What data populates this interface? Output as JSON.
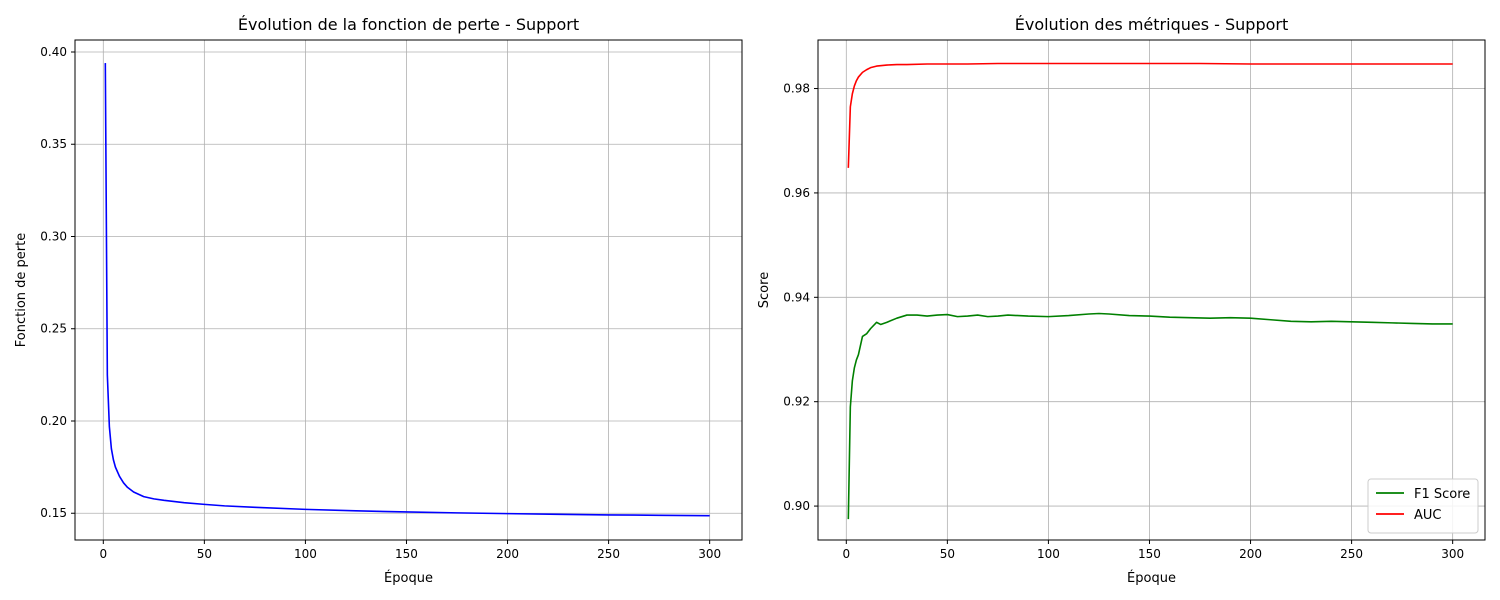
{
  "chart_data": [
    {
      "type": "line",
      "title": "Évolution de la fonction de perte - Support",
      "xlabel": "Époque",
      "ylabel": "Fonction de perte",
      "xlim": [
        -14,
        316
      ],
      "ylim": [
        0.1355,
        0.4065
      ],
      "xticks": [
        0,
        50,
        100,
        150,
        200,
        250,
        300
      ],
      "yticks": [
        0.15,
        0.2,
        0.25,
        0.3,
        0.35,
        0.4
      ],
      "ytick_labels": [
        "0.15",
        "0.20",
        "0.25",
        "0.30",
        "0.35",
        "0.40"
      ],
      "grid": true,
      "series": [
        {
          "color": "#0000ff",
          "x": [
            1,
            2,
            3,
            4,
            5,
            6,
            8,
            10,
            12,
            15,
            20,
            25,
            30,
            40,
            50,
            60,
            75,
            100,
            125,
            150,
            175,
            200,
            225,
            250,
            275,
            300
          ],
          "values": [
            0.394,
            0.225,
            0.197,
            0.185,
            0.179,
            0.175,
            0.17,
            0.1665,
            0.164,
            0.1615,
            0.159,
            0.1578,
            0.157,
            0.1557,
            0.1548,
            0.154,
            0.1532,
            0.1521,
            0.1513,
            0.1507,
            0.1502,
            0.1498,
            0.1494,
            0.1491,
            0.1489,
            0.1487
          ]
        }
      ]
    },
    {
      "type": "line",
      "title": "Évolution des métriques - Support",
      "xlabel": "Époque",
      "ylabel": "Score",
      "xlim": [
        -14,
        316
      ],
      "ylim": [
        0.8935,
        0.9893
      ],
      "xticks": [
        0,
        50,
        100,
        150,
        200,
        250,
        300
      ],
      "yticks": [
        0.9,
        0.92,
        0.94,
        0.96,
        0.98
      ],
      "ytick_labels": [
        "0.90",
        "0.92",
        "0.94",
        "0.96",
        "0.98"
      ],
      "grid": true,
      "legend_position": "lower-right",
      "series": [
        {
          "name": "F1 Score",
          "color": "#008000",
          "x": [
            1,
            2,
            3,
            4,
            5,
            6,
            8,
            10,
            12,
            15,
            17,
            20,
            25,
            30,
            35,
            40,
            45,
            50,
            55,
            60,
            65,
            70,
            75,
            80,
            90,
            100,
            110,
            120,
            125,
            130,
            140,
            150,
            160,
            170,
            180,
            190,
            200,
            210,
            220,
            230,
            240,
            250,
            260,
            270,
            280,
            290,
            300
          ],
          "values": [
            0.8975,
            0.919,
            0.924,
            0.9265,
            0.928,
            0.929,
            0.9325,
            0.933,
            0.934,
            0.9352,
            0.9348,
            0.9352,
            0.936,
            0.9366,
            0.9366,
            0.9364,
            0.9366,
            0.9367,
            0.9363,
            0.9364,
            0.9366,
            0.9363,
            0.9364,
            0.9366,
            0.9364,
            0.9363,
            0.9365,
            0.9368,
            0.9369,
            0.9368,
            0.9365,
            0.9364,
            0.9362,
            0.9361,
            0.936,
            0.9361,
            0.936,
            0.9357,
            0.9354,
            0.9353,
            0.9354,
            0.9353,
            0.9352,
            0.9351,
            0.935,
            0.9349,
            0.9349
          ]
        },
        {
          "name": "AUC",
          "color": "#ff0000",
          "x": [
            1,
            2,
            3,
            4,
            5,
            6,
            8,
            10,
            12,
            15,
            20,
            25,
            30,
            40,
            50,
            60,
            75,
            100,
            125,
            150,
            175,
            200,
            225,
            250,
            275,
            300
          ],
          "values": [
            0.9648,
            0.9765,
            0.979,
            0.9805,
            0.9815,
            0.9822,
            0.9831,
            0.9836,
            0.984,
            0.9843,
            0.9845,
            0.9846,
            0.9846,
            0.9847,
            0.9847,
            0.9847,
            0.9848,
            0.9848,
            0.9848,
            0.9848,
            0.9848,
            0.9847,
            0.9847,
            0.9847,
            0.9847,
            0.9847
          ]
        }
      ]
    }
  ]
}
